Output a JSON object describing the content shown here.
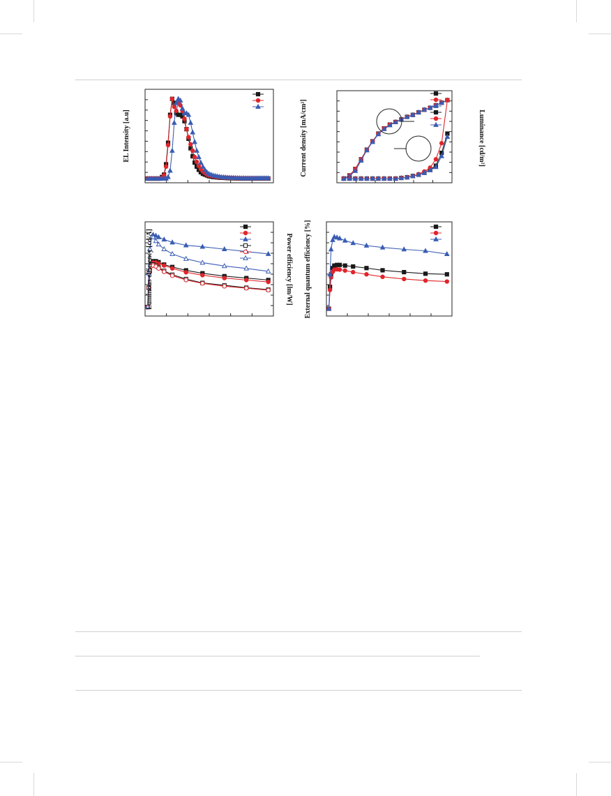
{
  "colors": {
    "black": "#1a1a1a",
    "red": "#e0262b",
    "blue": "#3a5db3"
  },
  "labels": {
    "el_y": "EL Intensity [a.u]",
    "jv_y": "Current density [mA/cm²]",
    "jv_y2": "Luminance [cd/m²]",
    "le_y": "Luminous efficiency [cd/A]",
    "le_y2": "Power efficiency [lm/W]",
    "eqe_y": "External quantum efficiency [%]"
  },
  "chart_data": [
    {
      "type": "line",
      "panel": "el-spectra",
      "ylabel": "EL Intensity [a.u]",
      "x": [
        0,
        1,
        2,
        3,
        4,
        5,
        6,
        7,
        8,
        9,
        10,
        11,
        12,
        13,
        14,
        15,
        16,
        17,
        18,
        19,
        20,
        21,
        22,
        23,
        24,
        25,
        26,
        27,
        28,
        29,
        30,
        31,
        32,
        33,
        34,
        35,
        36,
        37,
        38,
        39,
        40,
        41,
        42,
        43,
        44,
        45,
        46,
        47,
        48,
        49,
        50,
        51,
        52,
        53,
        54,
        55,
        56,
        57,
        58,
        59
      ],
      "series": [
        {
          "color": "black",
          "marker": "square",
          "values": [
            0,
            0,
            0,
            0,
            0,
            0,
            0,
            0.02,
            0.05,
            0.18,
            0.45,
            0.8,
            1.0,
            0.95,
            0.82,
            0.8,
            0.8,
            0.78,
            0.72,
            0.62,
            0.5,
            0.38,
            0.28,
            0.2,
            0.15,
            0.11,
            0.08,
            0.06,
            0.05,
            0.04,
            0.03,
            0.025,
            0.02,
            0.018,
            0.015,
            0.012,
            0.01,
            0.01,
            0.008,
            0.006,
            0.005,
            0.005,
            0.004,
            0.003,
            0.003,
            0.002,
            0.002,
            0.002,
            0.001,
            0.001,
            0.001,
            0.001,
            0.001,
            0.001,
            0.001,
            0.001,
            0.001,
            0.001,
            0.001,
            0.001
          ]
        },
        {
          "color": "red",
          "marker": "circle",
          "values": [
            0,
            0,
            0,
            0,
            0,
            0,
            0,
            0.01,
            0.04,
            0.15,
            0.42,
            0.78,
            1.0,
            0.9,
            0.85,
            0.95,
            0.92,
            0.85,
            0.75,
            0.62,
            0.52,
            0.43,
            0.35,
            0.27,
            0.21,
            0.16,
            0.12,
            0.09,
            0.07,
            0.05,
            0.04,
            0.035,
            0.03,
            0.025,
            0.02,
            0.018,
            0.015,
            0.013,
            0.011,
            0.01,
            0.009,
            0.008,
            0.007,
            0.006,
            0.005,
            0.005,
            0.004,
            0.004,
            0.003,
            0.003,
            0.003,
            0.003,
            0.003,
            0.003,
            0.003,
            0.003,
            0.003,
            0.003,
            0.003,
            0.003
          ]
        },
        {
          "color": "blue",
          "marker": "triangle",
          "values": [
            0,
            0,
            0,
            0,
            0,
            0,
            0,
            0,
            0,
            0,
            0.02,
            0.1,
            0.35,
            0.7,
            0.95,
            1.0,
            0.98,
            0.88,
            0.82,
            0.82,
            0.8,
            0.7,
            0.58,
            0.46,
            0.35,
            0.27,
            0.2,
            0.15,
            0.11,
            0.08,
            0.06,
            0.05,
            0.04,
            0.035,
            0.03,
            0.025,
            0.02,
            0.018,
            0.016,
            0.014,
            0.012,
            0.011,
            0.01,
            0.009,
            0.008,
            0.007,
            0.006,
            0.006,
            0.005,
            0.005,
            0.005,
            0.005,
            0.005,
            0.005,
            0.005,
            0.005,
            0.005,
            0.005,
            0.005,
            0.005
          ]
        }
      ]
    },
    {
      "type": "line",
      "panel": "jvl",
      "ylabel": "Current density [mA/cm²]",
      "y2label": "Luminance [cd/m²]",
      "x": [
        0,
        1,
        2,
        3,
        4,
        5,
        6,
        7,
        8,
        9,
        10,
        11,
        12,
        13,
        14,
        15,
        16,
        17,
        18
      ],
      "series": [
        {
          "color": "black",
          "marker": "square",
          "values": [
            0,
            0.05,
            0.15,
            0.3,
            0.45,
            0.58,
            0.7,
            0.78,
            0.84,
            0.88,
            0.92,
            0.96,
            0.99,
            1.03,
            1.07,
            1.1,
            1.14,
            1.18,
            1.22
          ]
        },
        {
          "color": "red",
          "marker": "circle",
          "values": [
            0,
            0.05,
            0.15,
            0.3,
            0.45,
            0.58,
            0.7,
            0.78,
            0.84,
            0.88,
            0.92,
            0.96,
            0.99,
            1.03,
            1.07,
            1.1,
            1.14,
            1.18,
            1.22
          ]
        },
        {
          "color": "blue",
          "marker": "triangle",
          "values": [
            0,
            0.04,
            0.12,
            0.28,
            0.44,
            0.57,
            0.69,
            0.77,
            0.83,
            0.88,
            0.92,
            0.96,
            0.99,
            1.03,
            1.07,
            1.1,
            1.14,
            1.18,
            1.22
          ]
        },
        {
          "color": "black",
          "marker": "square",
          "values": [
            0,
            0,
            0,
            0,
            0,
            0,
            0,
            0,
            0,
            0,
            0.01,
            0.02,
            0.04,
            0.06,
            0.09,
            0.14,
            0.2,
            0.4,
            0.7
          ]
        },
        {
          "color": "red",
          "marker": "circle",
          "values": [
            0,
            0,
            0,
            0,
            0,
            0,
            0,
            0,
            0,
            0,
            0.01,
            0.02,
            0.04,
            0.07,
            0.11,
            0.17,
            0.3,
            0.55,
            1.22
          ]
        },
        {
          "color": "blue",
          "marker": "triangle",
          "values": [
            0,
            0,
            0,
            0,
            0,
            0,
            0,
            0,
            0,
            0,
            0.01,
            0.02,
            0.04,
            0.06,
            0.09,
            0.13,
            0.18,
            0.35,
            0.65
          ]
        }
      ]
    },
    {
      "type": "line",
      "panel": "efficiency",
      "ylabel": "Luminous efficiency [cd/A]",
      "y2label": "Power efficiency [lm/W]",
      "x": [
        0,
        0.2,
        0.4,
        0.7,
        1,
        1.5,
        2,
        3,
        4.5,
        7,
        10,
        14,
        18,
        22
      ],
      "series": [
        {
          "color": "black",
          "marker": "square",
          "values": [
            0.1,
            0.5,
            0.85,
            1.0,
            1.05,
            1.05,
            1.03,
            0.98,
            0.93,
            0.86,
            0.8,
            0.74,
            0.7,
            0.66
          ]
        },
        {
          "color": "red",
          "marker": "circle",
          "values": [
            0.1,
            0.5,
            0.85,
            0.98,
            1.02,
            1.02,
            1.0,
            0.96,
            0.9,
            0.82,
            0.76,
            0.7,
            0.66,
            0.62
          ]
        },
        {
          "color": "blue",
          "marker": "triangle",
          "values": [
            0.1,
            0.8,
            1.3,
            1.55,
            1.6,
            1.58,
            1.55,
            1.5,
            1.44,
            1.38,
            1.35,
            1.3,
            1.25,
            1.2
          ]
        },
        {
          "color": "black",
          "marker": "open-square",
          "values": [
            0.1,
            0.5,
            0.85,
            0.98,
            0.98,
            0.96,
            0.92,
            0.85,
            0.77,
            0.68,
            0.6,
            0.55,
            0.5,
            0.46
          ]
        },
        {
          "color": "red",
          "marker": "open-circle",
          "values": [
            0.1,
            0.5,
            0.85,
            0.95,
            0.96,
            0.94,
            0.9,
            0.83,
            0.75,
            0.66,
            0.59,
            0.53,
            0.49,
            0.45
          ]
        },
        {
          "color": "blue",
          "marker": "open-triangle",
          "values": [
            0.1,
            0.8,
            1.3,
            1.55,
            1.55,
            1.47,
            1.4,
            1.3,
            1.2,
            1.1,
            1.02,
            0.95,
            0.9,
            0.84
          ]
        }
      ]
    },
    {
      "type": "line",
      "panel": "eqe",
      "ylabel": "External quantum efficiency [%]",
      "x": [
        0,
        0.2,
        0.4,
        0.7,
        1,
        1.5,
        2,
        3,
        4.5,
        7,
        10,
        14,
        18,
        22
      ],
      "series": [
        {
          "color": "black",
          "marker": "square",
          "values": [
            0.1,
            0.8,
            1.2,
            1.4,
            1.48,
            1.5,
            1.5,
            1.48,
            1.45,
            1.4,
            1.33,
            1.27,
            1.22,
            1.2
          ]
        },
        {
          "color": "red",
          "marker": "circle",
          "values": [
            0.1,
            0.7,
            1.1,
            1.28,
            1.35,
            1.36,
            1.35,
            1.32,
            1.27,
            1.2,
            1.12,
            1.05,
            1.0,
            0.97
          ]
        },
        {
          "color": "blue",
          "marker": "triangle",
          "values": [
            0.1,
            1.2,
            2.0,
            2.3,
            2.4,
            2.38,
            2.35,
            2.28,
            2.2,
            2.12,
            2.06,
            2.0,
            1.95,
            1.85
          ]
        }
      ]
    }
  ]
}
